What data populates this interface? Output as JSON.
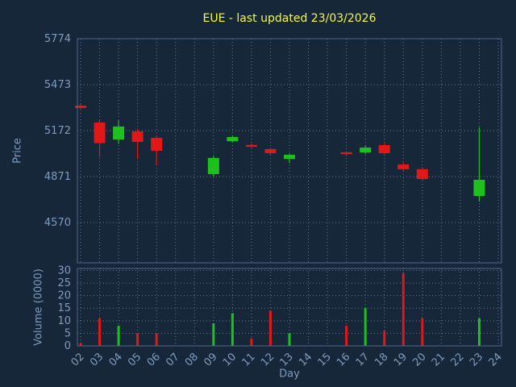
{
  "title": "EUE - last updated 23/03/2026",
  "axes": {
    "price_label": "Price",
    "volume_label": "Volume (0000)",
    "x_label": "Day"
  },
  "colors": {
    "background": "#17273a",
    "frame": "#4c6a85",
    "grid": "#a8b6c4",
    "title": "#f7f73a",
    "tick_text": "#7d9cbc",
    "up": "#1fbf1f",
    "down": "#e01818"
  },
  "chart_data": {
    "type": "candlestick-volume",
    "title": "EUE - last updated 23/03/2026",
    "xlabel": "Day",
    "grid": "dotted",
    "price_axis": {
      "label": "Price",
      "ticks": [
        5774,
        5473,
        5172,
        4871,
        4570
      ],
      "range": [
        4306,
        5774
      ]
    },
    "volume_axis": {
      "label": "Volume (0000)",
      "ticks": [
        0,
        5,
        10,
        15,
        20,
        25,
        30
      ],
      "range": [
        0,
        30.8
      ]
    },
    "day_ticks": [
      "02",
      "03",
      "04",
      "05",
      "06",
      "07",
      "08",
      "09",
      "10",
      "11",
      "12",
      "13",
      "14",
      "15",
      "16",
      "17",
      "18",
      "19",
      "20",
      "21",
      "22",
      "23",
      "24"
    ],
    "candles": [
      {
        "day": 2,
        "open": 5335,
        "high": 5345,
        "low": 5315,
        "close": 5320,
        "volume": 1
      },
      {
        "day": 3,
        "open": 5225,
        "high": 5240,
        "low": 5000,
        "close": 5090,
        "volume": 11
      },
      {
        "day": 4,
        "open": 5114,
        "high": 5240,
        "low": 5085,
        "close": 5199,
        "volume": 8
      },
      {
        "day": 5,
        "open": 5167,
        "high": 5185,
        "low": 4985,
        "close": 5098,
        "volume": 5
      },
      {
        "day": 6,
        "open": 5125,
        "high": 5135,
        "low": 4945,
        "close": 5040,
        "volume": 5
      },
      {
        "day": 9,
        "open": 4887,
        "high": 5005,
        "low": 4870,
        "close": 4993,
        "volume": 9
      },
      {
        "day": 10,
        "open": 5103,
        "high": 5140,
        "low": 5095,
        "close": 5130,
        "volume": 13
      },
      {
        "day": 11,
        "open": 5078,
        "high": 5085,
        "low": 5062,
        "close": 5066,
        "volume": 3
      },
      {
        "day": 12,
        "open": 5051,
        "high": 5060,
        "low": 5015,
        "close": 5024,
        "volume": 14
      },
      {
        "day": 13,
        "open": 4987,
        "high": 5022,
        "low": 4958,
        "close": 5014,
        "volume": 5
      },
      {
        "day": 16,
        "open": 5030,
        "high": 5038,
        "low": 5012,
        "close": 5018,
        "volume": 8
      },
      {
        "day": 17,
        "open": 5029,
        "high": 5072,
        "low": 5020,
        "close": 5061,
        "volume": 15
      },
      {
        "day": 18,
        "open": 5077,
        "high": 5088,
        "low": 5018,
        "close": 5024,
        "volume": 6
      },
      {
        "day": 19,
        "open": 4950,
        "high": 4962,
        "low": 4910,
        "close": 4919,
        "volume": 29
      },
      {
        "day": 20,
        "open": 4919,
        "high": 4932,
        "low": 4848,
        "close": 4855,
        "volume": 11
      },
      {
        "day": 23,
        "open": 4744,
        "high": 5194,
        "low": 4707,
        "close": 4850,
        "volume": 11
      }
    ]
  }
}
